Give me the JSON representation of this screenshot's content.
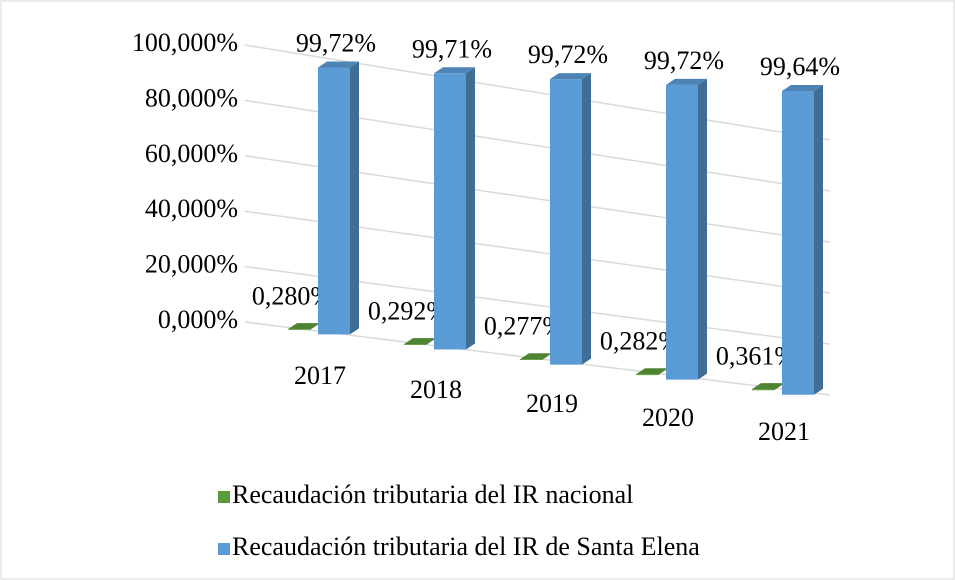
{
  "chart_data": {
    "type": "bar3d",
    "categories": [
      "2017",
      "2018",
      "2019",
      "2020",
      "2021"
    ],
    "series": [
      {
        "name": "Recaudación tributaria del IR nacional",
        "color": "#5a9a3a",
        "values": [
          0.28,
          0.292,
          0.277,
          0.282,
          0.361
        ],
        "value_labels": [
          "0,280%",
          "0,292%",
          "0,277%",
          "0,282%",
          "0,361%"
        ]
      },
      {
        "name": "Recaudación tributaria del IR de Santa Elena",
        "color": "#5b9bd5",
        "values": [
          99.72,
          99.71,
          99.72,
          99.72,
          99.64
        ],
        "value_labels": [
          "99,72%",
          "99,71%",
          "99,72%",
          "99,72%",
          "99,64%"
        ]
      }
    ],
    "ylim": [
      0,
      100
    ],
    "yticks": [
      {
        "value": 0,
        "label": "0,000%"
      },
      {
        "value": 20,
        "label": "20,000%"
      },
      {
        "value": 40,
        "label": "40,000%"
      },
      {
        "value": 60,
        "label": "60,000%"
      },
      {
        "value": 80,
        "label": "80,000%"
      },
      {
        "value": 100,
        "label": "100,000%"
      }
    ],
    "grid": true,
    "legend": "bottom"
  }
}
